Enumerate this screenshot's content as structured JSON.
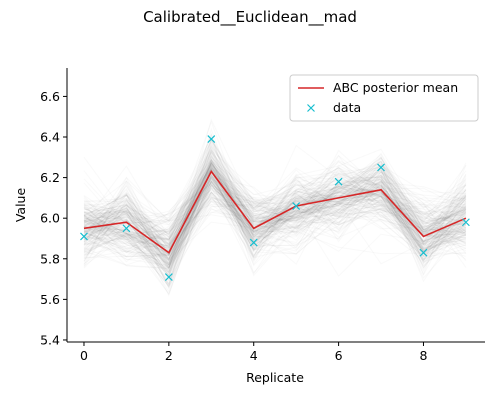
{
  "chart_data": {
    "type": "line",
    "title": "Calibrated__Euclidean__mad",
    "xlabel": "Replicate",
    "ylabel": "Value",
    "xlim": [
      -0.4,
      9.45
    ],
    "ylim": [
      5.39,
      6.74
    ],
    "x_ticks": [
      0,
      2,
      4,
      6,
      8
    ],
    "y_ticks": [
      5.4,
      5.6,
      5.8,
      6.0,
      6.2,
      6.4,
      6.6
    ],
    "x": [
      0,
      1,
      2,
      3,
      4,
      5,
      6,
      7,
      8,
      9
    ],
    "series": [
      {
        "name": "ABC posterior mean",
        "kind": "line",
        "color": "#d62728",
        "values": [
          5.95,
          5.98,
          5.83,
          6.23,
          5.95,
          6.06,
          6.1,
          6.14,
          5.91,
          6.0
        ]
      },
      {
        "name": "data",
        "kind": "marker-x",
        "color": "#17becf",
        "values": [
          5.91,
          5.95,
          5.71,
          6.39,
          5.88,
          6.06,
          6.18,
          6.25,
          5.83,
          5.98
        ]
      }
    ],
    "posterior_samples_band": {
      "color": "#555555",
      "description_only": true
    },
    "legend_position": "top-right",
    "grid": false
  }
}
